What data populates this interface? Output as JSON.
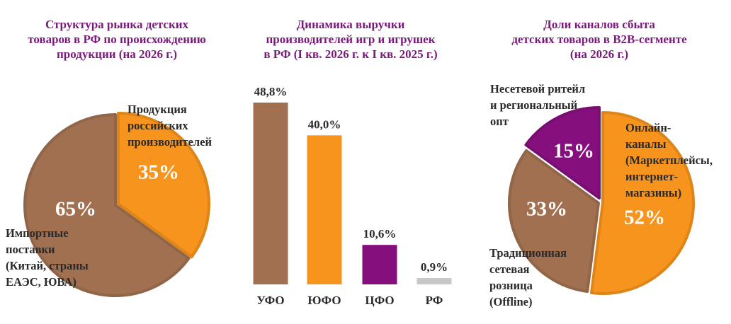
{
  "chart_data": [
    {
      "type": "pie",
      "title_lines": [
        "Структура рынка детских",
        "товаров в РФ по происхождению",
        "продукции (на 2026 г.)"
      ],
      "slices": [
        {
          "label_lines": [
            "Продукция",
            "российских",
            "производителей"
          ],
          "value": 35,
          "display": "35%",
          "color": "#f7941d"
        },
        {
          "label_lines": [
            "Импортные",
            "поставки",
            "(Китай, страны",
            "ЕАЭС, ЮВА)"
          ],
          "value": 65,
          "display": "65%",
          "color": "#a07050"
        }
      ]
    },
    {
      "type": "bar",
      "title_lines": [
        "Динамика выручки",
        "производителей игр и игрушек",
        "в РФ (I кв. 2026 г. к I кв. 2025 г.)"
      ],
      "categories": [
        "УФО",
        "ЮФО",
        "ЦФО",
        "РФ"
      ],
      "values": [
        48.8,
        40.0,
        10.6,
        0.9
      ],
      "value_labels": [
        "48,8%",
        "40,0%",
        "10,6%",
        "0,9%"
      ],
      "colors": [
        "#a07050",
        "#f7941d",
        "#860f7e",
        "#c8c8c8"
      ]
    },
    {
      "type": "pie",
      "title_lines": [
        "Доли каналов сбыта",
        "детских товаров в B2B-сегменте",
        "(на 2026 г.)"
      ],
      "slices": [
        {
          "label_lines": [
            "Онлайн-",
            "каналы",
            "(Маркетплейсы,",
            "интернет-",
            "магазины)"
          ],
          "value": 52,
          "display": "52%",
          "color": "#f7941d"
        },
        {
          "label_lines": [
            "Традиционная",
            "сетевая",
            "розница",
            "(Offline)"
          ],
          "value": 33,
          "display": "33%",
          "color": "#a07050"
        },
        {
          "label_lines": [
            "Несетевой ритейл",
            "и региональный",
            "опт"
          ],
          "value": 15,
          "display": "15%",
          "color": "#860f7e"
        }
      ]
    }
  ]
}
